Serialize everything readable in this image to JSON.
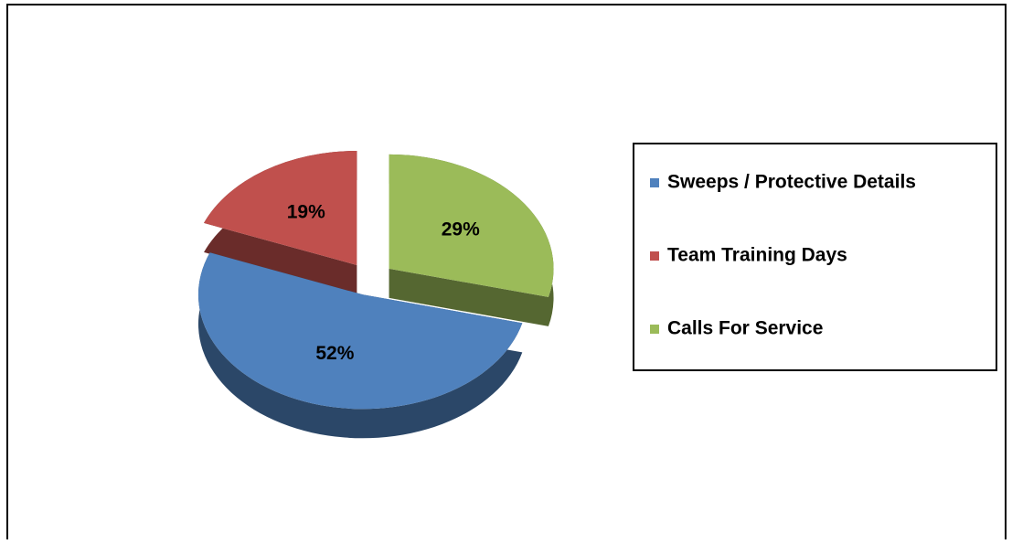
{
  "chart_data": {
    "type": "pie",
    "categories": [
      "Sweeps / Protective Details",
      "Team Training Days",
      "Calls For Service"
    ],
    "values": [
      52,
      19,
      29
    ],
    "value_labels": [
      "52%",
      "19%",
      "29%"
    ],
    "colors": [
      "#4f81bd",
      "#c0504d",
      "#9bbb59"
    ],
    "legend": "right"
  }
}
